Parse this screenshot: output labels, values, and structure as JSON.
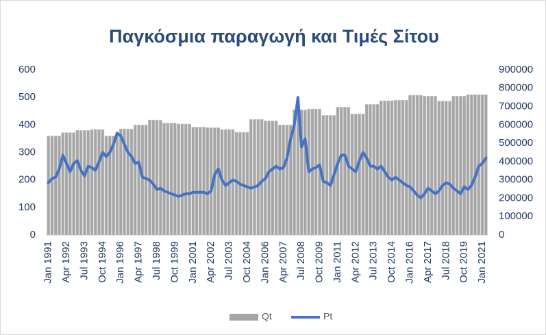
{
  "chart_data": {
    "type": "bar_line",
    "title": "Παγκόσμια παραγωγή και Τιμές Σίτου",
    "categories": [
      "Jan 1991",
      null,
      null,
      null,
      null,
      "Apr 1992",
      null,
      null,
      null,
      null,
      "Jul 1993",
      null,
      null,
      null,
      null,
      "Oct 1994",
      null,
      null,
      null,
      null,
      "Jan 1996",
      null,
      null,
      null,
      null,
      "Apr 1997",
      null,
      null,
      null,
      null,
      "Jul 1998",
      null,
      null,
      null,
      null,
      "Oct 1999",
      null,
      null,
      null,
      null,
      "Jan 2001",
      null,
      null,
      null,
      null,
      "Apr 2002",
      null,
      null,
      null,
      null,
      "Jul 2003",
      null,
      null,
      null,
      null,
      "Oct 2004",
      null,
      null,
      null,
      null,
      "Jan 2006",
      null,
      null,
      null,
      null,
      "Apr 2007",
      null,
      null,
      null,
      null,
      "Jul 2008",
      null,
      null,
      null,
      null,
      "Oct 2009",
      null,
      null,
      null,
      null,
      "Jan 2011",
      null,
      null,
      null,
      null,
      "Apr 2012",
      null,
      null,
      null,
      null,
      "Jul 2013",
      null,
      null,
      null,
      null,
      "Oct 2014",
      null,
      null,
      null,
      null,
      "Jan 2016",
      null,
      null,
      null,
      null,
      "Apr 2017",
      null,
      null,
      null,
      null,
      "Jul 2018",
      null,
      null,
      null,
      null,
      "Oct 2019",
      null,
      null,
      null,
      null,
      "Jan 2021",
      null
    ],
    "series": [
      {
        "name": "Qt",
        "type": "bar",
        "axis": "y2",
        "color": "#a6a6a6",
        "values": [
          540000,
          540000,
          540000,
          540000,
          558000,
          558000,
          558000,
          558000,
          570000,
          570000,
          570000,
          570000,
          575000,
          575000,
          575000,
          575000,
          540000,
          540000,
          540000,
          540000,
          578000,
          578000,
          578000,
          578000,
          600000,
          600000,
          600000,
          600000,
          627000,
          627000,
          627000,
          627000,
          610000,
          610000,
          610000,
          610000,
          605000,
          605000,
          605000,
          605000,
          588000,
          588000,
          588000,
          588000,
          585000,
          585000,
          585000,
          585000,
          575000,
          575000,
          575000,
          575000,
          560000,
          560000,
          560000,
          560000,
          630000,
          630000,
          630000,
          630000,
          622000,
          622000,
          622000,
          622000,
          600000,
          600000,
          600000,
          600000,
          682000,
          682000,
          682000,
          682000,
          687000,
          687000,
          687000,
          687000,
          652000,
          652000,
          652000,
          652000,
          697000,
          697000,
          697000,
          697000,
          660000,
          660000,
          660000,
          660000,
          712000,
          712000,
          712000,
          712000,
          732000,
          732000,
          732000,
          732000,
          735000,
          735000,
          735000,
          735000,
          762000,
          762000,
          762000,
          762000,
          757000,
          757000,
          757000,
          757000,
          730000,
          730000,
          730000,
          730000,
          757000,
          757000,
          757000,
          757000,
          765000,
          765000,
          765000,
          765000,
          765000,
          765000
        ]
      },
      {
        "name": "Pt",
        "type": "line",
        "axis": "y",
        "color": "#4472c4",
        "values": [
          190,
          205,
          210,
          240,
          290,
          260,
          230,
          260,
          270,
          235,
          215,
          250,
          245,
          235,
          265,
          300,
          285,
          300,
          330,
          370,
          360,
          330,
          300,
          285,
          260,
          265,
          210,
          205,
          200,
          185,
          165,
          170,
          160,
          155,
          150,
          145,
          140,
          145,
          150,
          150,
          155,
          155,
          155,
          155,
          150,
          160,
          220,
          240,
          200,
          180,
          190,
          200,
          195,
          185,
          180,
          175,
          170,
          175,
          180,
          195,
          205,
          230,
          240,
          250,
          240,
          245,
          280,
          350,
          400,
          500,
          320,
          350,
          230,
          240,
          245,
          255,
          195,
          190,
          180,
          220,
          260,
          290,
          290,
          250,
          240,
          230,
          270,
          300,
          280,
          250,
          250,
          240,
          250,
          230,
          210,
          200,
          210,
          200,
          190,
          180,
          175,
          160,
          145,
          135,
          150,
          170,
          160,
          150,
          160,
          180,
          190,
          185,
          170,
          160,
          150,
          175,
          165,
          180,
          210,
          250,
          260,
          280
        ]
      }
    ],
    "ylim": [
      0,
      600
    ],
    "yticks": [
      0,
      100,
      200,
      300,
      400,
      500,
      600
    ],
    "y2lim": [
      0,
      900000
    ],
    "y2ticks": [
      0,
      100000,
      200000,
      300000,
      400000,
      500000,
      600000,
      700000,
      800000,
      900000
    ],
    "legend": "bottom"
  }
}
